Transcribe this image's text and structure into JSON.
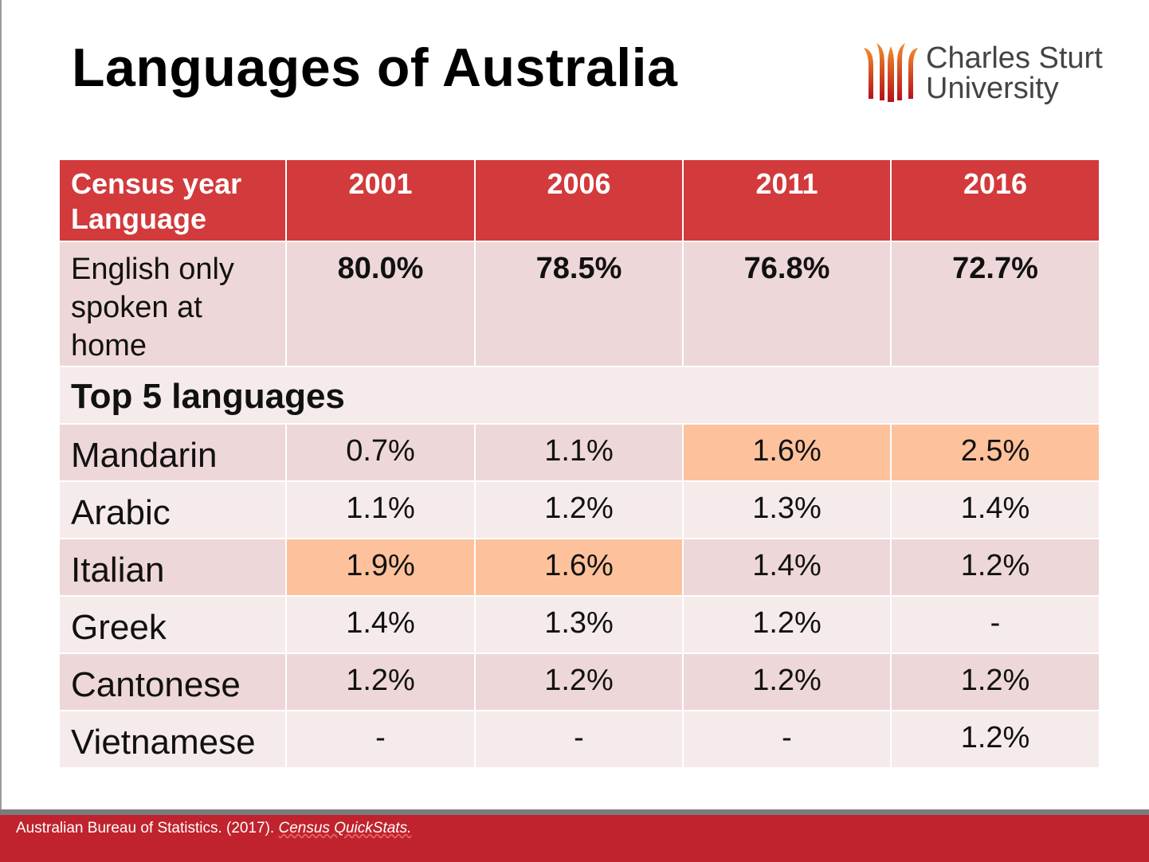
{
  "title": "Languages of Australia",
  "logo": {
    "line1": "Charles Sturt",
    "line2": "University"
  },
  "table": {
    "header": {
      "label_line1": "Census year",
      "label_line2": "Language",
      "years": [
        "2001",
        "2006",
        "2011",
        "2016"
      ]
    },
    "english_row": {
      "label": "English only spoken at home",
      "values": [
        "80.0%",
        "78.5%",
        "76.8%",
        "72.7%"
      ]
    },
    "section_label": "Top 5 languages",
    "rows": [
      {
        "label": "Mandarin",
        "values": [
          "0.7%",
          "1.1%",
          "1.6%",
          "2.5%"
        ]
      },
      {
        "label": "Arabic",
        "values": [
          "1.1%",
          "1.2%",
          "1.3%",
          "1.4%"
        ]
      },
      {
        "label": "Italian",
        "values": [
          "1.9%",
          "1.6%",
          "1.4%",
          "1.2%"
        ]
      },
      {
        "label": "Greek",
        "values": [
          "1.4%",
          "1.3%",
          "1.2%",
          "-"
        ]
      },
      {
        "label": "Cantonese",
        "values": [
          "1.2%",
          "1.2%",
          "1.2%",
          "1.2%"
        ]
      },
      {
        "label": "Vietnamese",
        "values": [
          "-",
          "-",
          "-",
          "1.2%"
        ]
      }
    ],
    "colors": {
      "header": "#d23a3c",
      "highlight": "#fdc29c"
    }
  },
  "footer": {
    "citation": "Australian Bureau of Statistics. (2017).",
    "citation_title": "Census QuickStats."
  }
}
